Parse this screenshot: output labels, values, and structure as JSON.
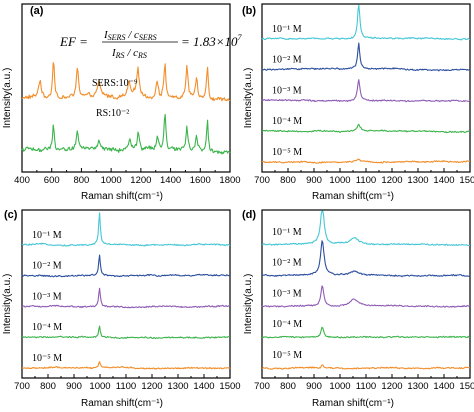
{
  "chart_data": [
    {
      "type": "line",
      "panel": "(a)",
      "xlabel": "Raman shift(cm⁻¹)",
      "ylabel": "Intensity(a.u.)",
      "xlim": [
        400,
        1800
      ],
      "xticks": [
        400,
        600,
        800,
        1000,
        1200,
        1400,
        1600,
        1800
      ],
      "annotation": {
        "ef_label": "EF =",
        "num": "I",
        "num_sub": "SERS",
        "num_mid": " / c",
        "num_sub2": "SERS",
        "den": "I",
        "den_sub": "RS",
        "den_mid": " / c",
        "den_sub2": "RS",
        "equals": "= 1.83×10",
        "power": "7"
      },
      "series": [
        {
          "name": "SERS:10⁻⁹",
          "color": "#f28e2b",
          "offset": 1.0,
          "peaks": [
            [
              520,
              0.25,
              10
            ],
            [
              612,
              0.55,
              8
            ],
            [
              773,
              0.45,
              9
            ],
            [
              918,
              0.2,
              12
            ],
            [
              1120,
              0.22,
              10
            ],
            [
              1180,
              0.4,
              10
            ],
            [
              1310,
              0.25,
              10
            ],
            [
              1362,
              0.5,
              8
            ],
            [
              1510,
              0.45,
              8
            ],
            [
              1575,
              0.28,
              8
            ],
            [
              1648,
              0.5,
              7
            ]
          ]
        },
        {
          "name": "RS:10⁻²",
          "color": "#3cb44b",
          "offset": 0.0,
          "peaks": [
            [
              612,
              0.4,
              6
            ],
            [
              773,
              0.25,
              8
            ],
            [
              918,
              0.12,
              10
            ],
            [
              1125,
              0.12,
              10
            ],
            [
              1183,
              0.25,
              8
            ],
            [
              1310,
              0.18,
              8
            ],
            [
              1362,
              0.55,
              7
            ],
            [
              1510,
              0.35,
              7
            ],
            [
              1575,
              0.2,
              7
            ],
            [
              1648,
              0.45,
              6
            ]
          ]
        }
      ]
    },
    {
      "type": "line",
      "panel": "(b)",
      "xlabel": "Raman shift(cm⁻¹)",
      "ylabel": "Intensity(a.u.)",
      "xlim": [
        700,
        1500
      ],
      "xticks": [
        700,
        800,
        900,
        1000,
        1100,
        1200,
        1300,
        1400,
        1500
      ],
      "series": [
        {
          "name": "10⁻¹ M",
          "color": "#46c6d6",
          "offset": 4,
          "peaks": [
            [
              1072,
              1.6,
              5
            ]
          ]
        },
        {
          "name": "10⁻² M",
          "color": "#2c4f9e",
          "offset": 3,
          "peaks": [
            [
              1072,
              1.1,
              5
            ]
          ]
        },
        {
          "name": "10⁻³ M",
          "color": "#8e5cb5",
          "offset": 2,
          "peaks": [
            [
              1072,
              0.9,
              6
            ]
          ]
        },
        {
          "name": "10⁻⁴ M",
          "color": "#3cb44b",
          "offset": 1,
          "peaks": [
            [
              1072,
              0.3,
              8
            ]
          ]
        },
        {
          "name": "10⁻⁵ M",
          "color": "#f28e2b",
          "offset": 0,
          "peaks": [
            [
              1072,
              0.12,
              8
            ]
          ]
        }
      ]
    },
    {
      "type": "line",
      "panel": "(c)",
      "xlabel": "Raman shift(cm⁻¹)",
      "ylabel": "Intensity(a.u.)",
      "xlim": [
        700,
        1500
      ],
      "xticks": [
        700,
        800,
        900,
        1000,
        1100,
        1200,
        1300,
        1400,
        1500
      ],
      "series": [
        {
          "name": "10⁻¹ M",
          "color": "#46c6d6",
          "offset": 4,
          "peaks": [
            [
              998,
              1.4,
              4
            ]
          ]
        },
        {
          "name": "10⁻² M",
          "color": "#2c4f9e",
          "offset": 3,
          "peaks": [
            [
              998,
              0.9,
              4
            ]
          ]
        },
        {
          "name": "10⁻³ M",
          "color": "#8e5cb5",
          "offset": 2,
          "peaks": [
            [
              998,
              0.8,
              4
            ]
          ]
        },
        {
          "name": "10⁻⁴ M",
          "color": "#3cb44b",
          "offset": 1,
          "peaks": [
            [
              998,
              0.5,
              4
            ]
          ]
        },
        {
          "name": "10⁻⁵ M",
          "color": "#f28e2b",
          "offset": 0,
          "peaks": [
            [
              998,
              0.25,
              4
            ]
          ]
        }
      ]
    },
    {
      "type": "line",
      "panel": "(d)",
      "xlabel": "Raman shift(cm⁻¹)",
      "ylabel": "Intensity(a.u.)",
      "xlim": [
        700,
        1500
      ],
      "xticks": [
        700,
        800,
        900,
        1000,
        1100,
        1200,
        1300,
        1400,
        1500
      ],
      "series": [
        {
          "name": "10⁻¹ M",
          "color": "#46c6d6",
          "offset": 4,
          "peaks": [
            [
              932,
              1.7,
              8
            ],
            [
              1055,
              0.3,
              20
            ]
          ]
        },
        {
          "name": "10⁻² M",
          "color": "#2c4f9e",
          "offset": 3,
          "peaks": [
            [
              932,
              1.5,
              8
            ],
            [
              1055,
              0.2,
              20
            ]
          ]
        },
        {
          "name": "10⁻³ M",
          "color": "#8e5cb5",
          "offset": 2,
          "peaks": [
            [
              932,
              0.9,
              7
            ],
            [
              1055,
              0.3,
              20
            ]
          ]
        },
        {
          "name": "10⁻⁴ M",
          "color": "#3cb44b",
          "offset": 1,
          "peaks": [
            [
              932,
              0.45,
              6
            ]
          ]
        },
        {
          "name": "10⁻⁵ M",
          "color": "#f28e2b",
          "offset": 0,
          "peaks": [
            [
              932,
              0.15,
              6
            ]
          ]
        }
      ]
    }
  ]
}
